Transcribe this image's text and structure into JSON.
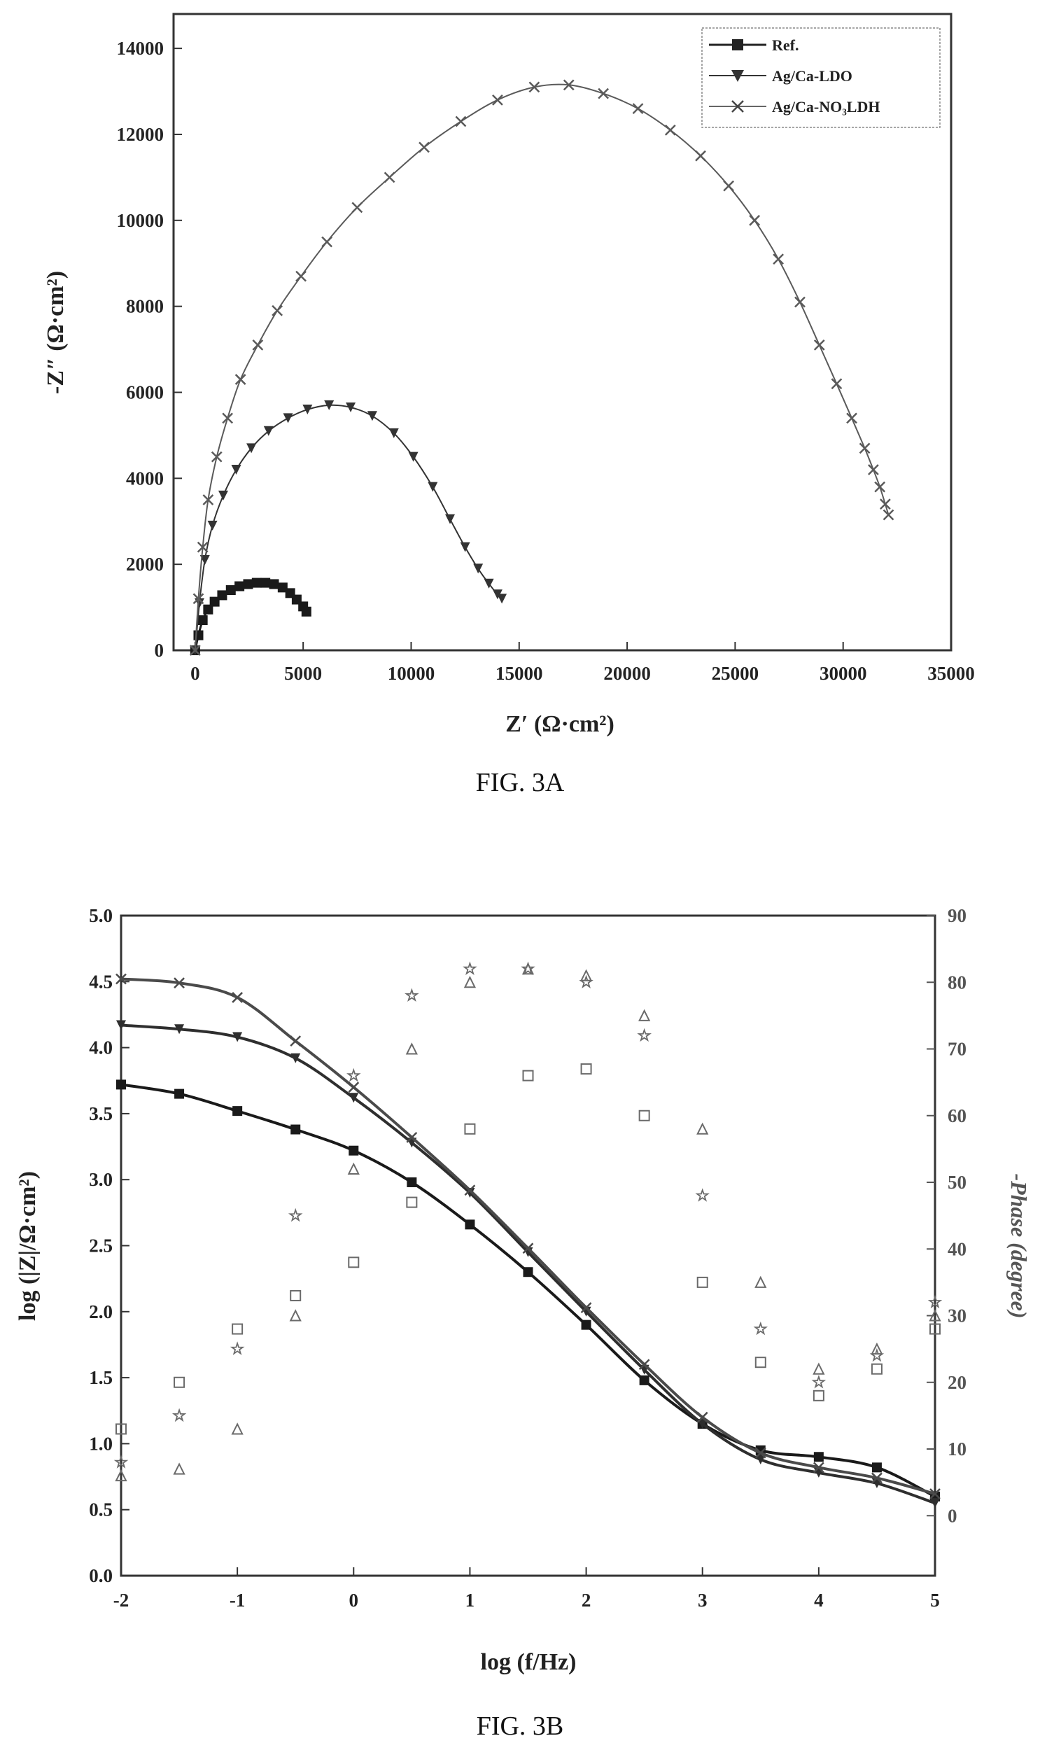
{
  "figures": [
    {
      "caption": "FIG. 3A"
    },
    {
      "caption": "FIG. 3B"
    }
  ],
  "chart_data": [
    {
      "type": "scatter",
      "xlabel": "Z′ (Ω·cm²)",
      "ylabel": "-Z″ (Ω·cm²)",
      "xlim": [
        -1000,
        35000
      ],
      "ylim": [
        0,
        14800
      ],
      "xticks": [
        "0",
        "5000",
        "10000",
        "15000",
        "20000",
        "25000",
        "30000",
        "35000"
      ],
      "yticks": [
        "0",
        "2000",
        "4000",
        "6000",
        "8000",
        "10000",
        "12000",
        "14000"
      ],
      "legend": {
        "placement": "top-right",
        "entries": [
          "Ref.",
          "Ag/Ca-LDO",
          "Ag/Ca-NO₃LDH"
        ]
      },
      "series": [
        {
          "name": "Ref.",
          "marker": "square",
          "x": [
            0,
            150,
            350,
            600,
            900,
            1250,
            1650,
            2050,
            2450,
            2850,
            3250,
            3650,
            4050,
            4400,
            4700,
            5000,
            5150
          ],
          "y": [
            0,
            350,
            700,
            950,
            1130,
            1280,
            1400,
            1490,
            1540,
            1570,
            1570,
            1540,
            1460,
            1330,
            1180,
            1020,
            900
          ]
        },
        {
          "name": "Ag/Ca-LDO",
          "marker": "triangle-down",
          "x": [
            0,
            200,
            450,
            800,
            1300,
            1900,
            2600,
            3400,
            4300,
            5200,
            6200,
            7200,
            8200,
            9200,
            10100,
            11000,
            11800,
            12500,
            13100,
            13600,
            14000,
            14200
          ],
          "y": [
            0,
            1100,
            2100,
            2900,
            3600,
            4200,
            4700,
            5100,
            5400,
            5600,
            5700,
            5650,
            5450,
            5050,
            4500,
            3800,
            3050,
            2400,
            1900,
            1550,
            1300,
            1200
          ]
        },
        {
          "name": "Ag/Ca-NO₃LDH",
          "marker": "cross",
          "x": [
            0,
            150,
            350,
            600,
            1000,
            1500,
            2100,
            2900,
            3800,
            4900,
            6100,
            7500,
            9000,
            10600,
            12300,
            14000,
            15700,
            17300,
            18900,
            20500,
            22000,
            23400,
            24700,
            25900,
            27000,
            28000,
            28900,
            29700,
            30400,
            31000,
            31400,
            31700,
            31950,
            32100
          ],
          "y": [
            0,
            1200,
            2400,
            3500,
            4500,
            5400,
            6300,
            7100,
            7900,
            8700,
            9500,
            10300,
            11000,
            11700,
            12300,
            12800,
            13100,
            13150,
            12950,
            12600,
            12100,
            11500,
            10800,
            10000,
            9100,
            8100,
            7100,
            6200,
            5400,
            4700,
            4200,
            3800,
            3400,
            3150
          ]
        }
      ]
    },
    {
      "type": "scatter",
      "xlabel": "log (f/Hz)",
      "ylabel": "log (|Z|/Ω·cm²)",
      "ylabel_right": "-Phase (degree)",
      "xlim": [
        -2,
        5
      ],
      "ylim": [
        0,
        5
      ],
      "ylim_right": [
        -9,
        90
      ],
      "xticks": [
        "-2",
        "-1",
        "0",
        "1",
        "2",
        "3",
        "4",
        "5"
      ],
      "yticks": [
        "0.0",
        "0.5",
        "1.0",
        "1.5",
        "2.0",
        "2.5",
        "3.0",
        "3.5",
        "4.0",
        "4.5",
        "5.0"
      ],
      "yticks_right": [
        "0",
        "10",
        "20",
        "30",
        "40",
        "50",
        "60",
        "70",
        "80",
        "90"
      ],
      "series": [
        {
          "marker": "square",
          "axis": "left",
          "x": [
            -2,
            -1.5,
            -1,
            -0.5,
            0,
            0.5,
            1,
            1.5,
            2,
            2.5,
            3,
            3.5,
            4,
            4.5,
            5
          ],
          "y": [
            3.72,
            3.65,
            3.52,
            3.38,
            3.22,
            2.98,
            2.66,
            2.3,
            1.9,
            1.48,
            1.15,
            0.95,
            0.9,
            0.82,
            0.6
          ]
        },
        {
          "marker": "triangle-down",
          "axis": "left",
          "x": [
            -2,
            -1.5,
            -1,
            -0.5,
            0,
            0.5,
            1,
            1.5,
            2,
            2.5,
            3,
            3.5,
            4,
            4.5,
            5
          ],
          "y": [
            4.17,
            4.14,
            4.08,
            3.92,
            3.62,
            3.28,
            2.9,
            2.45,
            2.0,
            1.56,
            1.15,
            0.88,
            0.78,
            0.7,
            0.55
          ]
        },
        {
          "marker": "cross",
          "axis": "left",
          "x": [
            -2,
            -1.5,
            -1,
            -0.5,
            0,
            0.5,
            1,
            1.5,
            2,
            2.5,
            3,
            3.5,
            4,
            4.5,
            5
          ],
          "y": [
            4.52,
            4.49,
            4.38,
            4.05,
            3.7,
            3.32,
            2.92,
            2.48,
            2.03,
            1.6,
            1.2,
            0.93,
            0.82,
            0.74,
            0.62
          ]
        },
        {
          "marker": "open-square",
          "axis": "right",
          "x": [
            -2,
            -1.5,
            -1,
            -0.5,
            0,
            0.5,
            1,
            1.5,
            2,
            2.5,
            3,
            3.5,
            4,
            4.5,
            5
          ],
          "y": [
            13,
            20,
            28,
            33,
            38,
            47,
            58,
            66,
            67,
            60,
            35,
            23,
            18,
            22,
            28
          ]
        },
        {
          "marker": "open-triangle",
          "axis": "right",
          "x": [
            -2,
            -1.5,
            -1,
            -0.5,
            0,
            0.5,
            1,
            1.5,
            2,
            2.5,
            3,
            3.5,
            4,
            4.5,
            5
          ],
          "y": [
            6,
            7,
            13,
            30,
            52,
            70,
            80,
            82,
            81,
            75,
            58,
            35,
            22,
            25,
            30
          ]
        },
        {
          "marker": "open-star",
          "axis": "right",
          "x": [
            -2,
            -1.5,
            -1,
            -0.5,
            0,
            0.5,
            1,
            1.5,
            2,
            2.5,
            3,
            3.5,
            4,
            4.5,
            5
          ],
          "y": [
            8,
            15,
            25,
            45,
            66,
            78,
            82,
            82,
            80,
            72,
            48,
            28,
            20,
            24,
            32
          ]
        }
      ]
    }
  ]
}
